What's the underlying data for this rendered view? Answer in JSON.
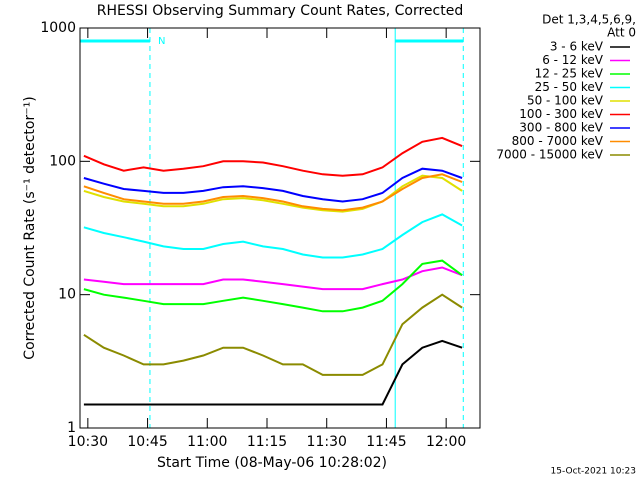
{
  "chart_data": {
    "type": "line",
    "title": "RHESSI Observing Summary Count Rates, Corrected",
    "x_label": "Start Time (08-May-06 10:28:02)",
    "y_label": "Corrected Count Rate (s⁻¹ detector⁻¹)",
    "legend_header": [
      "Det 1,3,4,5,6,9,",
      "Att 0"
    ],
    "footer": "15-Oct-2021 10:23",
    "night_label": "N",
    "night_intervals": [
      [
        628.03,
        645.6
      ],
      [
        707.2,
        724.3
      ]
    ],
    "log_scale": true,
    "grid": false,
    "xlim": [
      628.03,
      728.5
    ],
    "ylim": [
      1,
      1000
    ],
    "xticks": [
      {
        "value": 630,
        "label": "10:30"
      },
      {
        "value": 645,
        "label": "10:45"
      },
      {
        "value": 660,
        "label": "11:00"
      },
      {
        "value": 675,
        "label": "11:15"
      },
      {
        "value": 690,
        "label": "11:30"
      },
      {
        "value": 705,
        "label": "11:45"
      },
      {
        "value": 720,
        "label": "12:00"
      }
    ],
    "yticks": [
      1,
      10,
      100,
      1000
    ],
    "x": [
      629,
      634,
      639,
      644,
      649,
      654,
      659,
      664,
      669,
      674,
      679,
      684,
      689,
      694,
      699,
      704,
      709,
      714,
      719,
      724
    ],
    "series": [
      {
        "name": "3 - 6 keV",
        "color": "#000000",
        "values": [
          1.5,
          1.5,
          1.5,
          1.5,
          1.5,
          1.5,
          1.5,
          1.5,
          1.5,
          1.5,
          1.5,
          1.5,
          1.5,
          1.5,
          1.5,
          1.5,
          3,
          4,
          4.5,
          4
        ]
      },
      {
        "name": "6 - 12 keV",
        "color": "#ff00ff",
        "values": [
          13,
          12.5,
          12,
          12,
          12,
          12,
          12,
          13,
          13,
          12.5,
          12,
          11.5,
          11,
          11,
          11,
          12,
          13,
          15,
          16,
          14
        ]
      },
      {
        "name": "12 - 25 keV",
        "color": "#00ff00",
        "values": [
          11,
          10,
          9.5,
          9,
          8.5,
          8.5,
          8.5,
          9,
          9.5,
          9,
          8.5,
          8,
          7.5,
          7.5,
          8,
          9,
          12,
          17,
          18,
          14
        ]
      },
      {
        "name": "25 - 50 keV",
        "color": "#00ffff",
        "values": [
          32,
          29,
          27,
          25,
          23,
          22,
          22,
          24,
          25,
          23,
          22,
          20,
          19,
          19,
          20,
          22,
          28,
          35,
          40,
          33
        ]
      },
      {
        "name": "50 - 100 keV",
        "color": "#e0e000",
        "values": [
          60,
          54,
          50,
          48,
          46,
          46,
          48,
          52,
          53,
          51,
          48,
          45,
          43,
          42,
          44,
          50,
          65,
          78,
          75,
          60
        ]
      },
      {
        "name": "100 - 300 keV",
        "color": "#ff0000",
        "values": [
          110,
          95,
          85,
          90,
          85,
          88,
          92,
          100,
          100,
          98,
          92,
          85,
          80,
          78,
          80,
          90,
          115,
          140,
          150,
          130
        ]
      },
      {
        "name": "300 - 800 keV",
        "color": "#0000ff",
        "values": [
          75,
          68,
          62,
          60,
          58,
          58,
          60,
          64,
          65,
          63,
          60,
          55,
          52,
          50,
          52,
          58,
          75,
          88,
          85,
          75
        ]
      },
      {
        "name": "800 - 7000 keV",
        "color": "#ff8c00",
        "values": [
          65,
          58,
          52,
          50,
          48,
          48,
          50,
          54,
          55,
          53,
          50,
          46,
          44,
          43,
          45,
          50,
          62,
          75,
          80,
          70
        ]
      },
      {
        "name": "7000 - 15000 keV",
        "color": "#8b8b00",
        "values": [
          5,
          4,
          3.5,
          3,
          3,
          3.2,
          3.5,
          4,
          4,
          3.5,
          3,
          3,
          2.5,
          2.5,
          2.5,
          3,
          6,
          8,
          10,
          8
        ]
      }
    ]
  }
}
